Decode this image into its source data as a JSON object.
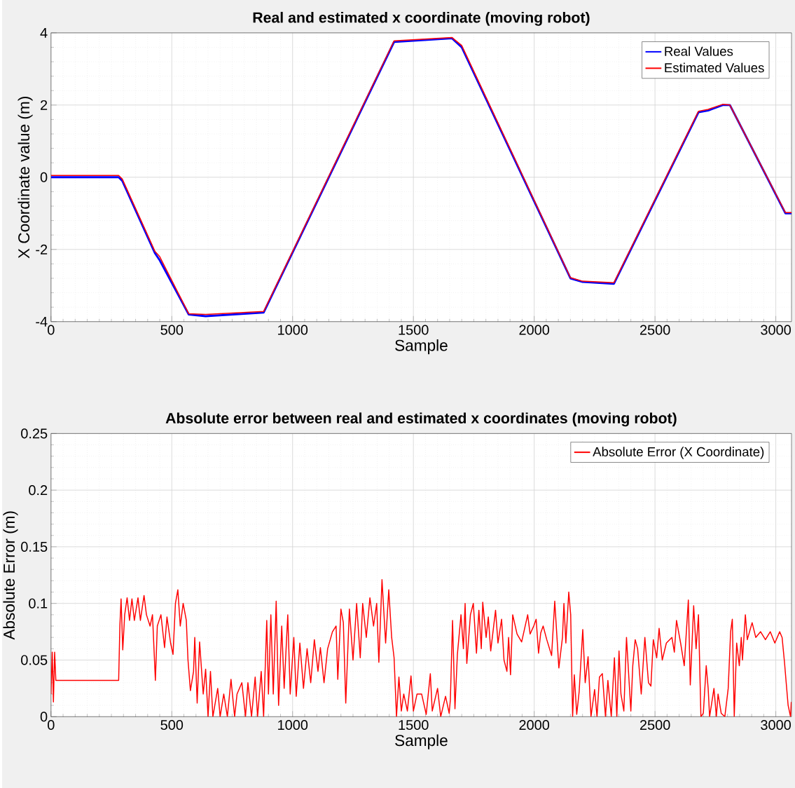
{
  "chart_data": [
    {
      "type": "line",
      "title": "Real and estimated x coordinate (moving robot)",
      "xlabel": "Sample",
      "ylabel": "X Coordinate value (m)",
      "xlim": [
        0,
        3065
      ],
      "ylim": [
        -4,
        4
      ],
      "xticks": [
        0,
        500,
        1000,
        1500,
        2000,
        2500,
        3000
      ],
      "yticks": [
        -4,
        -2,
        0,
        2,
        4
      ],
      "grid": true,
      "legend": "top right",
      "series": [
        {
          "name": "Real Values",
          "color": "#0000ff",
          "x": [
            0,
            280,
            295,
            430,
            450,
            570,
            640,
            880,
            1420,
            1660,
            1700,
            2150,
            2200,
            2330,
            2680,
            2720,
            2780,
            2810,
            3040,
            3065
          ],
          "values": [
            0,
            0,
            -0.1,
            -2.1,
            -2.3,
            -3.8,
            -3.85,
            -3.75,
            3.75,
            3.85,
            3.6,
            -2.8,
            -2.9,
            -2.95,
            1.8,
            1.85,
            2.0,
            2.0,
            -1.0,
            -1.0
          ]
        },
        {
          "name": "Estimated Values",
          "color": "#ff0000",
          "x": [
            0,
            280,
            295,
            430,
            450,
            570,
            640,
            880,
            1420,
            1660,
            1700,
            2150,
            2200,
            2330,
            2680,
            2720,
            2780,
            2810,
            3040,
            3065
          ],
          "values": [
            0.05,
            0.05,
            -0.05,
            -2.05,
            -2.2,
            -3.78,
            -3.8,
            -3.72,
            3.78,
            3.87,
            3.65,
            -2.78,
            -2.88,
            -2.92,
            1.83,
            1.88,
            2.02,
            2.0,
            -0.98,
            -0.98
          ]
        }
      ]
    },
    {
      "type": "line",
      "title": "Absolute error between real and estimated x coordinates (moving robot)",
      "xlabel": "Sample",
      "ylabel": "Absolute Error (m)",
      "xlim": [
        0,
        3065
      ],
      "ylim": [
        0,
        0.25
      ],
      "xticks": [
        0,
        500,
        1000,
        1500,
        2000,
        2500,
        3000
      ],
      "yticks": [
        0,
        0.05,
        0.1,
        0.15,
        0.2,
        0.25
      ],
      "grid": true,
      "legend": "top right",
      "series": [
        {
          "name": "Absolute Error (X Coordinate)",
          "color": "#ff0000",
          "x": [
            0,
            5,
            10,
            15,
            20,
            280,
            285,
            290,
            297,
            305,
            315,
            325,
            335,
            345,
            360,
            370,
            385,
            395,
            410,
            420,
            432,
            440,
            455,
            470,
            480,
            495,
            505,
            515,
            525,
            535,
            547,
            560,
            567,
            577,
            590,
            595,
            605,
            615,
            630,
            640,
            650,
            660,
            670,
            690,
            700,
            715,
            730,
            745,
            760,
            770,
            790,
            805,
            815,
            830,
            845,
            855,
            870,
            880,
            893,
            900,
            910,
            920,
            932,
            942,
            955,
            965,
            980,
            990,
            1005,
            1015,
            1030,
            1045,
            1060,
            1075,
            1090,
            1105,
            1115,
            1130,
            1145,
            1165,
            1180,
            1187,
            1200,
            1210,
            1220,
            1235,
            1250,
            1265,
            1280,
            1290,
            1305,
            1320,
            1335,
            1348,
            1357,
            1370,
            1385,
            1398,
            1410,
            1420,
            1430,
            1440,
            1450,
            1460,
            1475,
            1490,
            1500,
            1515,
            1534,
            1553,
            1570,
            1578,
            1600,
            1613,
            1633,
            1648,
            1653,
            1662,
            1672,
            1682,
            1697,
            1707,
            1714,
            1721,
            1736,
            1748,
            1761,
            1771,
            1781,
            1787,
            1801,
            1810,
            1820,
            1840,
            1850,
            1865,
            1875,
            1887,
            1894,
            1902,
            1911,
            1929,
            1948,
            1973,
            1983,
            1998,
            2008,
            2018,
            2027,
            2037,
            2052,
            2072,
            2085,
            2102,
            2117,
            2123,
            2131,
            2143,
            2151,
            2159,
            2166,
            2176,
            2186,
            2201,
            2211,
            2223,
            2235,
            2250,
            2260,
            2270,
            2282,
            2295,
            2305,
            2319,
            2332,
            2342,
            2351,
            2359,
            2371,
            2382,
            2393,
            2400,
            2408,
            2418,
            2428,
            2443,
            2458,
            2473,
            2483,
            2493,
            2507,
            2517,
            2530,
            2547,
            2570,
            2580,
            2589,
            2606,
            2621,
            2638,
            2646,
            2660,
            2670,
            2680,
            2690,
            2700,
            2712,
            2720,
            2726,
            2744,
            2754,
            2761,
            2774,
            2789,
            2803,
            2813,
            2820,
            2828,
            2838,
            2849,
            2857,
            2862,
            2874,
            2882,
            2902,
            2917,
            2937,
            2957,
            2977,
            2996,
            3016,
            3026,
            3036,
            3043,
            3051,
            3061,
            3064
          ],
          "values": [
            0.02,
            0.057,
            0.013,
            0.057,
            0.032,
            0.032,
            0.08,
            0.104,
            0.059,
            0.09,
            0.105,
            0.085,
            0.104,
            0.085,
            0.105,
            0.085,
            0.107,
            0.09,
            0.08,
            0.09,
            0.032,
            0.08,
            0.09,
            0.061,
            0.088,
            0.065,
            0.055,
            0.1,
            0.112,
            0.08,
            0.1,
            0.085,
            0.05,
            0.023,
            0.04,
            0.07,
            0.012,
            0.066,
            0.02,
            0.042,
            0.0,
            0.04,
            0.0,
            0.025,
            0.0,
            0.02,
            0.0,
            0.033,
            0.0,
            0.02,
            0.03,
            0.0,
            0.03,
            0.0,
            0.035,
            0.0,
            0.04,
            0.0,
            0.085,
            0.02,
            0.09,
            0.02,
            0.102,
            0.01,
            0.08,
            0.025,
            0.09,
            0.02,
            0.07,
            0.018,
            0.065,
            0.025,
            0.06,
            0.03,
            0.068,
            0.04,
            0.061,
            0.03,
            0.06,
            0.075,
            0.08,
            0.033,
            0.095,
            0.083,
            0.012,
            0.095,
            0.05,
            0.1,
            0.052,
            0.1,
            0.07,
            0.105,
            0.08,
            0.1,
            0.048,
            0.121,
            0.065,
            0.112,
            0.07,
            0.052,
            0.0,
            0.035,
            0.005,
            0.02,
            0.005,
            0.036,
            0.005,
            0.02,
            0.02,
            0.002,
            0.038,
            0.005,
            0.025,
            0.0,
            0.018,
            0.003,
            0.015,
            0.085,
            0.007,
            0.055,
            0.09,
            0.06,
            0.1,
            0.047,
            0.09,
            0.1,
            0.056,
            0.094,
            0.06,
            0.101,
            0.07,
            0.088,
            0.058,
            0.094,
            0.065,
            0.086,
            0.05,
            0.04,
            0.07,
            0.037,
            0.09,
            0.073,
            0.066,
            0.09,
            0.073,
            0.08,
            0.086,
            0.056,
            0.074,
            0.08,
            0.068,
            0.054,
            0.102,
            0.043,
            0.07,
            0.1,
            0.065,
            0.11,
            0.09,
            0.0,
            0.037,
            0.002,
            0.022,
            0.077,
            0.03,
            0.053,
            0.0,
            0.024,
            0.0,
            0.035,
            0.038,
            0.0,
            0.032,
            0.0,
            0.052,
            0.0,
            0.058,
            0.02,
            0.005,
            0.07,
            0.03,
            0.005,
            0.045,
            0.068,
            0.06,
            0.02,
            0.07,
            0.03,
            0.027,
            0.068,
            0.052,
            0.078,
            0.05,
            0.065,
            0.07,
            0.057,
            0.085,
            0.065,
            0.045,
            0.103,
            0.028,
            0.098,
            0.06,
            0.09,
            0.0,
            0.003,
            0.045,
            0.025,
            0.0,
            0.025,
            0.0,
            0.02,
            0.003,
            0.0,
            0.025,
            0.075,
            0.086,
            0.0,
            0.065,
            0.045,
            0.07,
            0.05,
            0.09,
            0.068,
            0.083,
            0.07,
            0.075,
            0.068,
            0.075,
            0.065,
            0.075,
            0.07,
            0.048,
            0.03,
            0.01,
            0.0,
            0.013
          ]
        }
      ]
    }
  ]
}
